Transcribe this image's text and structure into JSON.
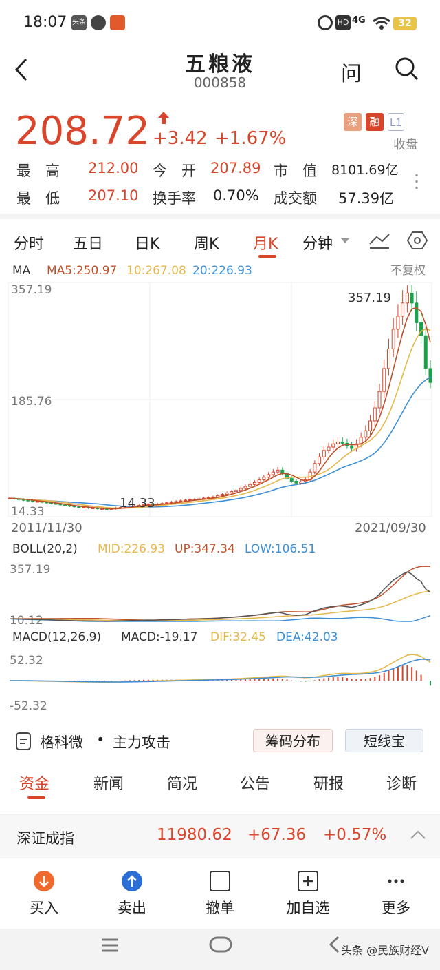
{
  "status": {
    "time": "18:07",
    "network": "4G",
    "battery": "32"
  },
  "header": {
    "title": "五粮液",
    "code": "000858",
    "ask": "问"
  },
  "quote": {
    "price": "208.72",
    "change": "+3.42",
    "pct": "+1.67%",
    "badges": [
      "深",
      "融",
      "L1"
    ],
    "status": "收盘",
    "row1": {
      "l1": "最　高",
      "v1": "212.00",
      "l2": "今　开",
      "v2": "207.89",
      "l3": "市　值",
      "v3": "8101.69亿"
    },
    "row2": {
      "l1": "最　低",
      "v1": "207.10",
      "l2": "换手率",
      "v2": "0.70%",
      "l3": "成交额",
      "v3": "57.39亿"
    }
  },
  "chart_tabs": [
    "分时",
    "五日",
    "日K",
    "周K",
    "月K",
    "分钟"
  ],
  "active_tab": "月K",
  "ma_legend": {
    "label": "MA",
    "ma5": "MA5:250.97",
    "ma10": "10:267.08",
    "ma20": "20:226.93",
    "adjust": "不复权"
  },
  "main_axis": {
    "top": "357.19",
    "mid": "185.76",
    "bottom": "14.33",
    "date_start": "2011/11/30",
    "date_end": "2021/09/30",
    "high_label": "357.19",
    "low_label": "14.33"
  },
  "boll_legend": {
    "label": "BOLL(20,2)",
    "mid": "MID:226.93",
    "up": "UP:347.34",
    "low": "LOW:106.51",
    "top": "357.19",
    "bottom": "10.12"
  },
  "macd_legend": {
    "label": "MACD(12,26,9)",
    "macd": "MACD:-19.17",
    "dif": "DIF:32.45",
    "dea": "DEA:42.03",
    "top": "52.32",
    "bottom": "-52.32"
  },
  "tools": {
    "brand": "格科微",
    "tag": "主力攻击",
    "btn1": "筹码分布",
    "btn2": "短线宝"
  },
  "feature_tabs": [
    "资金",
    "新闻",
    "简况",
    "公告",
    "研报",
    "诊断"
  ],
  "index_bar": {
    "name": "深证成指",
    "value": "11980.62",
    "change": "+67.36",
    "pct": "+0.57%"
  },
  "actions": [
    "买入",
    "卖出",
    "撤单",
    "加自选",
    "更多"
  ],
  "watermark": "头条 @民族财经V",
  "colors": {
    "up": "#d8452a",
    "down": "#1aa34a",
    "ma5": "#c0502a",
    "ma10": "#e6b84a",
    "ma20": "#3d8fd6"
  },
  "chart_data": {
    "type": "candlestick",
    "period": "monthly",
    "x_range": [
      "2011/11/30",
      "2021/09/30"
    ],
    "ylim": [
      14.33,
      357.19
    ],
    "annotations": [
      {
        "label": "357.19",
        "type": "high"
      },
      {
        "label": "14.33",
        "type": "low"
      }
    ],
    "close": [
      32,
      31,
      30,
      29,
      28,
      27,
      27,
      26,
      25,
      24,
      23,
      22,
      21,
      20,
      19,
      18,
      18,
      17,
      17,
      16,
      16,
      15,
      16,
      17,
      18,
      19,
      20,
      20,
      21,
      22,
      23,
      22,
      23,
      24,
      25,
      26,
      27,
      28,
      29,
      30,
      30,
      31,
      32,
      33,
      34,
      36,
      38,
      40,
      42,
      44,
      47,
      50,
      53,
      56,
      60,
      64,
      68,
      72,
      75,
      70,
      62,
      58,
      55,
      57,
      60,
      72,
      85,
      95,
      105,
      110,
      115,
      118,
      116,
      112,
      108,
      115,
      125,
      135,
      150,
      170,
      195,
      230,
      260,
      290,
      310,
      330,
      345,
      330,
      300,
      280,
      230,
      208.72
    ],
    "ma5": [
      "250.97"
    ],
    "ma10": [
      "267.08"
    ],
    "ma20": [
      "226.93"
    ]
  }
}
